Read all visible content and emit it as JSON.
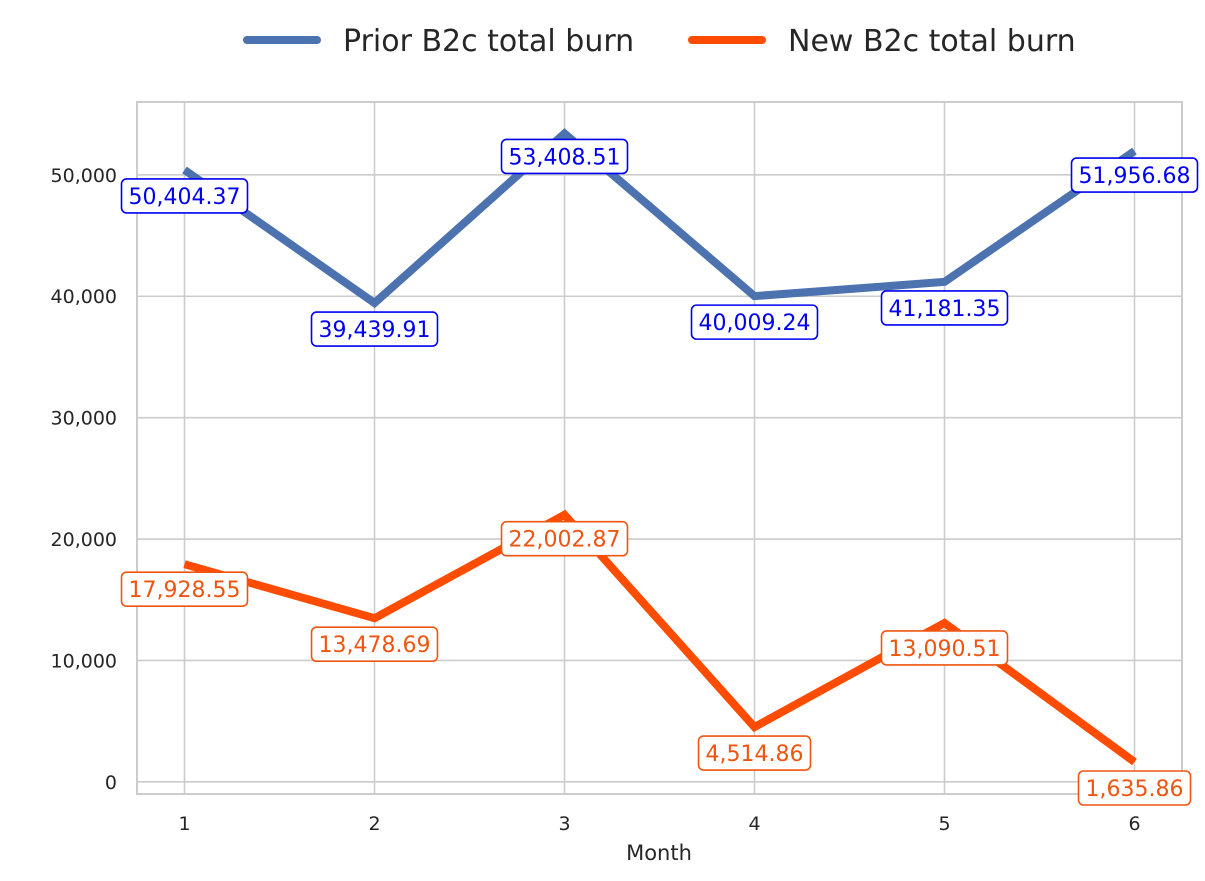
{
  "chart_data": {
    "type": "line",
    "title": "",
    "xlabel": "Month",
    "ylabel": "",
    "x": [
      1,
      2,
      3,
      4,
      5,
      6
    ],
    "x_tick_labels": [
      "1",
      "2",
      "3",
      "4",
      "5",
      "6"
    ],
    "y_ticks": [
      0,
      10000,
      20000,
      30000,
      40000,
      50000
    ],
    "y_tick_labels": [
      "0",
      "10,000",
      "20,000",
      "30,000",
      "40,000",
      "50,000"
    ],
    "xlim": [
      0.75,
      6.25
    ],
    "ylim": [
      -1000,
      56000
    ],
    "grid": true,
    "legend_position": "top-center",
    "series": [
      {
        "name": "Prior B2c total burn",
        "color": "#4c72b0",
        "label_color": "#0000ee",
        "values": [
          50404.37,
          39439.91,
          53408.51,
          40009.24,
          41181.35,
          51956.68
        ],
        "data_labels": [
          "50,404.37",
          "39,439.91",
          "53,408.51",
          "40,009.24",
          "41,181.35",
          "51,956.68"
        ]
      },
      {
        "name": "New B2c total burn",
        "color": "#ff4c00",
        "label_color": "#ee5511",
        "values": [
          17928.55,
          13478.69,
          22002.87,
          4514.86,
          13090.51,
          1635.86
        ],
        "data_labels": [
          "17,928.55",
          "13,478.69",
          "22,002.87",
          "4,514.86",
          "13,090.51",
          "1,635.86"
        ]
      }
    ]
  }
}
